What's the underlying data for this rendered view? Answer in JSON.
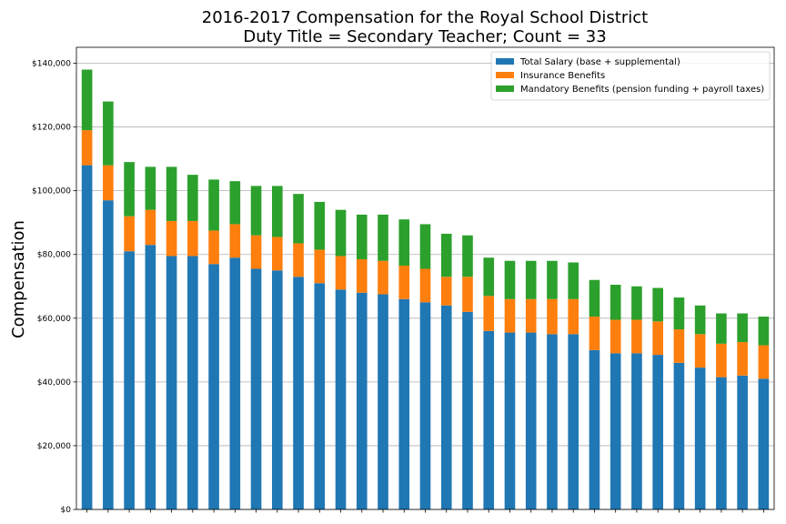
{
  "chart_data": {
    "type": "bar",
    "stacked": true,
    "title": "2016-2017 Compensation for the Royal School District",
    "subtitle": "Duty Title = Secondary Teacher; Count = 33",
    "ylabel": "Compensation",
    "xlabel": "",
    "ylim": [
      0,
      145000
    ],
    "yticks": [
      0,
      20000,
      40000,
      60000,
      80000,
      100000,
      120000,
      140000
    ],
    "ytick_labels": [
      "$0",
      "$20,000",
      "$40,000",
      "$60,000",
      "$80,000",
      "$100,000",
      "$120,000",
      "$140,000"
    ],
    "grid": "horizontal",
    "legend_position": "top-right",
    "series": [
      {
        "name": "Total Salary (base + supplemental)",
        "color": "#1f77b4",
        "values": [
          108000,
          97000,
          81000,
          83000,
          79500,
          79500,
          77000,
          79000,
          75500,
          75000,
          73000,
          71000,
          69000,
          68000,
          67500,
          66000,
          65000,
          64000,
          62000,
          56000,
          55500,
          55500,
          55000,
          55000,
          50000,
          49000,
          49000,
          48500,
          46000,
          44500,
          41500,
          42000,
          41000
        ]
      },
      {
        "name": "Insurance Benefits",
        "color": "#ff7f0e",
        "values": [
          11000,
          11000,
          11000,
          11000,
          11000,
          11000,
          10500,
          10500,
          10500,
          10500,
          10500,
          10500,
          10500,
          10500,
          10500,
          10500,
          10500,
          9000,
          11000,
          11000,
          10500,
          10500,
          11000,
          11000,
          10500,
          10500,
          10500,
          10500,
          10500,
          10500,
          10500,
          10500,
          10500
        ]
      },
      {
        "name": "Mandatory Benefits (pension funding + payroll taxes)",
        "color": "#2ca02c",
        "values": [
          19000,
          20000,
          17000,
          13500,
          17000,
          14500,
          16000,
          13500,
          15500,
          16000,
          15500,
          15000,
          14500,
          14000,
          14500,
          14500,
          14000,
          13500,
          13000,
          12000,
          12000,
          12000,
          12000,
          11500,
          11500,
          11000,
          10500,
          10500,
          10000,
          9000,
          9500,
          9000,
          9000
        ]
      }
    ]
  }
}
